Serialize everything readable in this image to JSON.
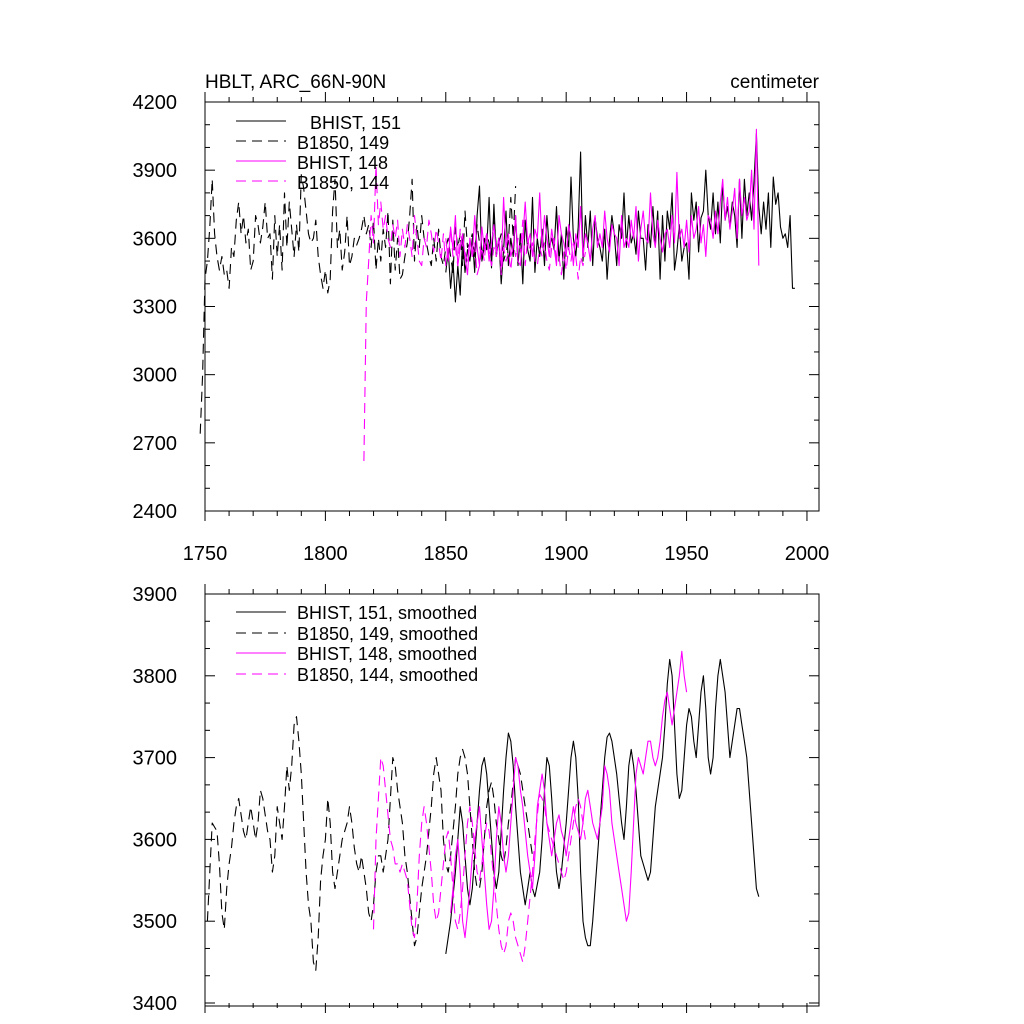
{
  "chart_data": [
    {
      "type": "line",
      "title": "HBLT, ARC_66N-90N",
      "units": "centimeter",
      "xlim": [
        1750,
        2005
      ],
      "ylim": [
        2400,
        4200
      ],
      "xticks": [
        1750,
        1800,
        1850,
        1900,
        1950,
        2000
      ],
      "yticks": [
        2400,
        2700,
        3000,
        3300,
        3600,
        3900,
        4200
      ],
      "xtick_labels": [
        "1750",
        "1800",
        "1850",
        "1900",
        "1950",
        "2000"
      ],
      "ytick_labels": [
        "2400",
        "2700",
        "3000",
        "3300",
        "3600",
        "3900",
        "4200"
      ],
      "legend_position": "top-left",
      "series": [
        {
          "name": "BHIST, 151",
          "color": "#000000",
          "dash": "solid",
          "start": 1850,
          "values": [
            3450,
            3550,
            3380,
            3500,
            3320,
            3480,
            3350,
            3600,
            3450,
            3550,
            3500,
            3600,
            3450,
            3700,
            3830,
            3500,
            3600,
            3550,
            3780,
            3470,
            3750,
            3520,
            3600,
            3400,
            3550,
            3720,
            3480,
            3600,
            3520,
            3700,
            3480,
            3620,
            3400,
            3680,
            3550,
            3500,
            3780,
            3450,
            3600,
            3520,
            3640,
            3480,
            3700,
            3560,
            3600,
            3550,
            3740,
            3500,
            3620,
            3420,
            3650,
            3550,
            3870,
            3600,
            3520,
            3650,
            3980,
            3500,
            3700,
            3560,
            3720,
            3480,
            3690,
            3600,
            3560,
            3500,
            3640,
            3420,
            3590,
            3700,
            3620,
            3480,
            3660,
            3600,
            3800,
            3560,
            3700,
            3580,
            3620,
            3530,
            3720,
            3600,
            3600,
            3460,
            3660,
            3560,
            3740,
            3570,
            3720,
            3420,
            3700,
            3500,
            3720,
            3640,
            3800,
            3460,
            3540,
            3660,
            3500,
            3560,
            3580,
            3420,
            3800,
            3680,
            3760,
            3540,
            3690,
            3720,
            3900,
            3700,
            3640,
            3800,
            3620,
            3760,
            3580,
            3840,
            3680,
            3740,
            3650,
            3760,
            3700,
            3560,
            3860,
            3600,
            3860,
            3700,
            3800,
            3680,
            3850,
            4060,
            3740,
            3620,
            3760,
            3640,
            3800,
            3560,
            3870,
            3750,
            3800,
            3650,
            3600,
            3620,
            3560,
            3700,
            3380,
            3380
          ]
        },
        {
          "name": "B1850, 149",
          "color": "#000000",
          "dash": "10,6",
          "start": 1748,
          "values": [
            2740,
            3000,
            3420,
            3500,
            3650,
            3860,
            3620,
            3520,
            3460,
            3520,
            3440,
            3460,
            3380,
            3560,
            3520,
            3680,
            3760,
            3620,
            3700,
            3580,
            3640,
            3460,
            3500,
            3700,
            3660,
            3580,
            3650,
            3760,
            3600,
            3620,
            3420,
            3700,
            3520,
            3660,
            3460,
            3800,
            3560,
            3760,
            3640,
            3520,
            3660,
            3540,
            3880,
            3820,
            3720,
            3620,
            3580,
            3600,
            3680,
            3520,
            3440,
            3380,
            3460,
            3360,
            3420,
            3720,
            3860,
            3560,
            3640,
            3460,
            3540,
            3700,
            3480,
            3520,
            3600,
            3570,
            3600,
            3640,
            3700,
            3620,
            3660,
            3560,
            3680,
            3460,
            3600,
            3500,
            3640,
            3560,
            3720,
            3400,
            3680,
            3460,
            3600,
            3420,
            3440,
            3520,
            3580,
            3700,
            3860,
            3500,
            3660,
            3560,
            3700,
            3600,
            3580,
            3520,
            3480,
            3600,
            3500,
            3640,
            3520,
            3480,
            3560,
            3600,
            3520,
            3450,
            3650,
            3560,
            3620,
            3480,
            3720,
            3560,
            3580,
            3620,
            3520,
            3660,
            3580,
            3500,
            3560,
            3620,
            3580,
            3520,
            3700,
            3560,
            3580,
            3620,
            3500,
            3540,
            3580,
            3780,
            3600,
            3830
          ]
        },
        {
          "name": "BHIST, 148",
          "color": "#ff00ff",
          "dash": "solid",
          "start": 1850,
          "values": [
            3600,
            3500,
            3650,
            3550,
            3700,
            3480,
            3560,
            3620,
            3520,
            3440,
            3600,
            3520,
            3700,
            3560,
            3480,
            3650,
            3550,
            3620,
            3500,
            3580,
            3660,
            3540,
            3600,
            3480,
            3780,
            3560,
            3620,
            3520,
            3560,
            3700,
            3500,
            3480,
            3600,
            3760,
            3580,
            3620,
            3520,
            3640,
            3600,
            3800,
            3560,
            3700,
            3600,
            3520,
            3640,
            3560,
            3480,
            3700,
            3620,
            3580,
            3520,
            3660,
            3600,
            3480,
            3620,
            3560,
            3740,
            3520,
            3620,
            3580,
            3500,
            3640,
            3700,
            3560,
            3620,
            3560,
            3720,
            3600,
            3540,
            3660,
            3620,
            3600,
            3480,
            3700,
            3560,
            3600,
            3560,
            3680,
            3600,
            3740,
            3500,
            3640,
            3720,
            3600,
            3580,
            3800,
            3620,
            3560,
            3680,
            3600,
            3540,
            3620,
            3640,
            3560,
            3700,
            3580,
            3890,
            3600,
            3640,
            3560,
            3680,
            3540,
            3700,
            3600,
            3640,
            3740,
            3580,
            3660,
            3520,
            3700,
            3680,
            3600,
            3720,
            3620,
            3760,
            3860,
            3680,
            3780,
            3640,
            3720,
            3820,
            3600,
            3860,
            3700,
            3780,
            3680,
            3720,
            3900,
            3640,
            4080,
            3480
          ]
        },
        {
          "name": "B1850, 144",
          "color": "#ff00ff",
          "dash": "10,6",
          "start": 1816,
          "values": [
            2620,
            3320,
            3500,
            3700,
            3580,
            3920,
            3660,
            3760,
            3640,
            3700,
            3600,
            3560,
            3660,
            3600,
            3680,
            3520,
            3640,
            3560,
            3660,
            3600,
            3520,
            3700,
            3600,
            3500,
            3480,
            3600,
            3560,
            3680,
            3620,
            3540,
            3640,
            3580,
            3500,
            3620,
            3480,
            3560,
            3640,
            3520,
            3560,
            3480,
            3640,
            3560,
            3540,
            3500,
            3600,
            3520,
            3580,
            3440,
            3480,
            3560,
            3500,
            3620,
            3540,
            3480,
            3560,
            3520,
            3600,
            3440,
            3560,
            3500,
            3540,
            3460,
            3580,
            3520,
            3600,
            3540,
            3680,
            3480,
            3600,
            3540,
            3580,
            3500,
            3480,
            3560,
            3520,
            3580,
            3500,
            3460,
            3560,
            3600,
            3500,
            3520,
            3440,
            3540,
            3460,
            3560,
            3500,
            3580,
            3520,
            3420,
            3520,
            3480,
            3540
          ]
        }
      ]
    },
    {
      "type": "line",
      "xlim": [
        1750,
        2005
      ],
      "ylim": [
        3400,
        3900
      ],
      "xticks": [
        1750,
        1800,
        1850,
        1900,
        1950,
        2000
      ],
      "yticks": [
        3400,
        3500,
        3600,
        3700,
        3800,
        3900
      ],
      "ytick_labels": [
        "3400",
        "3500",
        "3600",
        "3700",
        "3800",
        "3900"
      ],
      "legend_position": "top-left",
      "series": [
        {
          "name": "BHIST, 151, smoothed",
          "color": "#000000",
          "dash": "solid",
          "start": 1850,
          "values": [
            3460,
            3480,
            3500,
            3530,
            3560,
            3600,
            3640,
            3620,
            3580,
            3540,
            3520,
            3540,
            3580,
            3620,
            3660,
            3690,
            3700,
            3680,
            3640,
            3600,
            3560,
            3540,
            3560,
            3610,
            3660,
            3700,
            3730,
            3720,
            3690,
            3640,
            3600,
            3560,
            3540,
            3520,
            3540,
            3560,
            3540,
            3530,
            3545,
            3560,
            3600,
            3660,
            3700,
            3690,
            3650,
            3600,
            3560,
            3540,
            3560,
            3590,
            3620,
            3660,
            3700,
            3720,
            3700,
            3650,
            3560,
            3500,
            3480,
            3470,
            3470,
            3500,
            3540,
            3580,
            3620,
            3660,
            3700,
            3725,
            3730,
            3720,
            3700,
            3680,
            3650,
            3620,
            3600,
            3640,
            3690,
            3710,
            3690,
            3660,
            3620,
            3580,
            3570,
            3560,
            3550,
            3560,
            3600,
            3640,
            3660,
            3680,
            3700,
            3740,
            3790,
            3820,
            3800,
            3740,
            3680,
            3650,
            3660,
            3700,
            3740,
            3760,
            3750,
            3720,
            3700,
            3740,
            3780,
            3800,
            3760,
            3700,
            3680,
            3700,
            3760,
            3800,
            3820,
            3800,
            3780,
            3740,
            3700,
            3720,
            3740,
            3760,
            3760,
            3740,
            3720,
            3700,
            3660,
            3620,
            3580,
            3540,
            3530
          ]
        },
        {
          "name": "B1850, 149, smoothed",
          "color": "#000000",
          "dash": "10,6",
          "start": 1751,
          "values": [
            3500,
            3560,
            3620,
            3615,
            3610,
            3570,
            3510,
            3490,
            3540,
            3570,
            3590,
            3620,
            3640,
            3650,
            3630,
            3610,
            3600,
            3620,
            3640,
            3620,
            3600,
            3620,
            3660,
            3650,
            3630,
            3610,
            3600,
            3560,
            3580,
            3640,
            3620,
            3600,
            3640,
            3690,
            3660,
            3690,
            3740,
            3750,
            3720,
            3680,
            3620,
            3560,
            3520,
            3500,
            3450,
            3440,
            3480,
            3550,
            3580,
            3600,
            3650,
            3620,
            3560,
            3540,
            3560,
            3580,
            3600,
            3610,
            3620,
            3640,
            3620,
            3590,
            3570,
            3560,
            3580,
            3560,
            3540,
            3510,
            3500,
            3520,
            3560,
            3580,
            3580,
            3560,
            3580,
            3600,
            3650,
            3700,
            3690,
            3660,
            3640,
            3620,
            3580,
            3560,
            3530,
            3500,
            3470,
            3480,
            3510,
            3540,
            3560,
            3580,
            3610,
            3640,
            3680,
            3700,
            3680,
            3660,
            3600,
            3570,
            3560,
            3580,
            3610,
            3640,
            3680,
            3700,
            3710,
            3700,
            3680,
            3640,
            3600,
            3560,
            3540,
            3540,
            3560,
            3600,
            3640,
            3660,
            3670,
            3650,
            3620,
            3600,
            3580,
            3570,
            3590,
            3620,
            3640,
            3670,
            3700,
            3690,
            3680,
            3660,
            3640,
            3620,
            3600,
            3580
          ]
        },
        {
          "name": "BHIST, 148, smoothed",
          "color": "#ff00ff",
          "dash": "solid",
          "start": 1852,
          "values": [
            3510,
            3540,
            3580,
            3600,
            3560,
            3500,
            3480,
            3510,
            3540,
            3580,
            3600,
            3620,
            3640,
            3600,
            3560,
            3520,
            3490,
            3500,
            3540,
            3600,
            3640,
            3620,
            3580,
            3560,
            3580,
            3620,
            3660,
            3700,
            3690,
            3660,
            3640,
            3610,
            3580,
            3560,
            3540,
            3580,
            3640,
            3660,
            3680,
            3660,
            3620,
            3600,
            3580,
            3600,
            3620,
            3630,
            3610,
            3600,
            3580,
            3600,
            3620,
            3640,
            3620,
            3610,
            3600,
            3620,
            3650,
            3660,
            3640,
            3620,
            3610,
            3600,
            3620,
            3640,
            3690,
            3680,
            3660,
            3620,
            3600,
            3580,
            3560,
            3540,
            3520,
            3500,
            3510,
            3560,
            3620,
            3680,
            3700,
            3690,
            3680,
            3700,
            3720,
            3720,
            3700,
            3690,
            3700,
            3720,
            3750,
            3770,
            3780,
            3760,
            3740,
            3760,
            3780,
            3800,
            3830,
            3800,
            3780
          ]
        },
        {
          "name": "B1850, 144, smoothed",
          "color": "#ff00ff",
          "dash": "10,6",
          "start": 1820,
          "values": [
            3490,
            3600,
            3650,
            3700,
            3690,
            3660,
            3630,
            3600,
            3590,
            3570,
            3570,
            3560,
            3570,
            3560,
            3550,
            3520,
            3490,
            3480,
            3520,
            3580,
            3620,
            3640,
            3620,
            3590,
            3560,
            3520,
            3500,
            3510,
            3540,
            3570,
            3600,
            3610,
            3580,
            3540,
            3500,
            3490,
            3510,
            3540,
            3580,
            3620,
            3640,
            3620,
            3590,
            3560,
            3550,
            3570,
            3600,
            3620,
            3610,
            3580,
            3550,
            3520,
            3490,
            3470,
            3460,
            3470,
            3500,
            3510,
            3500,
            3480,
            3470,
            3460,
            3450,
            3470,
            3500,
            3530,
            3560,
            3600,
            3630,
            3655,
            3650,
            3640,
            3620,
            3610,
            3600,
            3590,
            3580,
            3570,
            3560,
            3550,
            3560,
            3580,
            3600,
            3620,
            3640,
            3650,
            3640,
            3620,
            3600
          ]
        }
      ]
    }
  ]
}
